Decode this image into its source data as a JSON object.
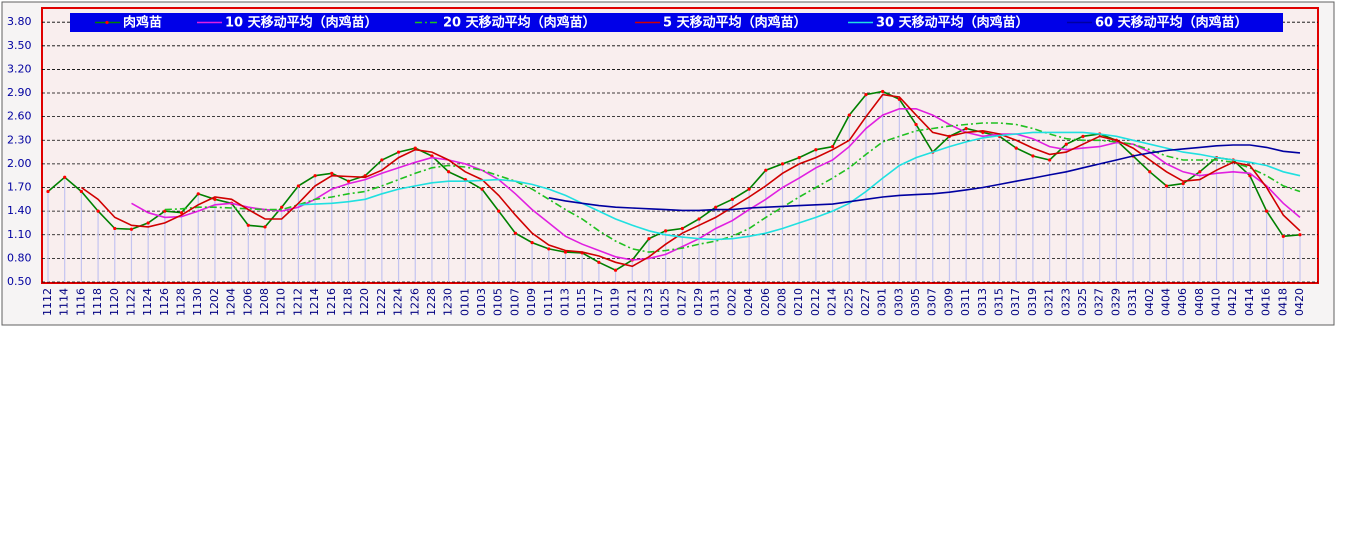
{
  "chart_data": {
    "type": "line",
    "categories": [
      "1112",
      "1114",
      "1116",
      "1118",
      "1120",
      "1122",
      "1124",
      "1126",
      "1128",
      "1130",
      "1202",
      "1204",
      "1206",
      "1208",
      "1210",
      "1212",
      "1214",
      "1216",
      "1218",
      "1220",
      "1222",
      "1224",
      "1226",
      "1228",
      "1230",
      "0101",
      "0103",
      "0105",
      "0107",
      "0109",
      "0111",
      "0113",
      "0115",
      "0117",
      "0119",
      "0121",
      "0123",
      "0125",
      "0127",
      "0129",
      "0131",
      "0202",
      "0204",
      "0206",
      "0208",
      "0210",
      "0212",
      "0214",
      "0225",
      "0227",
      "0301",
      "0303",
      "0305",
      "0307",
      "0309",
      "0311",
      "0313",
      "0315",
      "0317",
      "0319",
      "0321",
      "0323",
      "0325",
      "0327",
      "0329",
      "0331",
      "0402",
      "0404",
      "0406",
      "0408",
      "0410",
      "0412",
      "0414",
      "0416",
      "0418",
      "0420"
    ],
    "series": [
      {
        "name": "肉鸡苗",
        "color": "#008000",
        "marker_color": "#ff0000",
        "bar_color": "#c4c4f0",
        "values": [
          1.65,
          1.83,
          1.65,
          1.4,
          1.18,
          1.17,
          1.25,
          1.4,
          1.38,
          1.62,
          1.55,
          1.5,
          1.22,
          1.2,
          1.45,
          1.72,
          1.85,
          1.88,
          1.78,
          1.85,
          2.05,
          2.15,
          2.2,
          2.1,
          1.9,
          1.8,
          1.68,
          1.4,
          1.12,
          1.0,
          0.92,
          0.88,
          0.87,
          0.75,
          0.65,
          0.78,
          1.05,
          1.15,
          1.18,
          1.3,
          1.45,
          1.55,
          1.68,
          1.92,
          2.0,
          2.08,
          2.18,
          2.22,
          2.62,
          2.88,
          2.92,
          2.82,
          2.5,
          2.15,
          2.35,
          2.45,
          2.4,
          2.35,
          2.2,
          2.1,
          2.05,
          2.25,
          2.35,
          2.38,
          2.3,
          2.1,
          1.9,
          1.72,
          1.75,
          1.9,
          2.08,
          2.05,
          1.85,
          1.4,
          1.08,
          1.1
        ]
      },
      {
        "name": "10 天移动平均（肉鸡苗）",
        "color": "#e020e0",
        "values": [
          null,
          null,
          null,
          null,
          null,
          1.5,
          1.38,
          1.32,
          1.33,
          1.4,
          1.48,
          1.5,
          1.45,
          1.42,
          1.4,
          1.45,
          1.55,
          1.68,
          1.75,
          1.8,
          1.88,
          1.95,
          2.02,
          2.08,
          2.05,
          2.0,
          1.92,
          1.8,
          1.62,
          1.42,
          1.25,
          1.08,
          0.98,
          0.9,
          0.82,
          0.78,
          0.8,
          0.85,
          0.95,
          1.05,
          1.18,
          1.28,
          1.42,
          1.55,
          1.7,
          1.82,
          1.95,
          2.05,
          2.22,
          2.45,
          2.62,
          2.7,
          2.7,
          2.62,
          2.5,
          2.4,
          2.35,
          2.38,
          2.38,
          2.32,
          2.22,
          2.18,
          2.2,
          2.22,
          2.27,
          2.25,
          2.15,
          2.0,
          1.9,
          1.85,
          1.88,
          1.9,
          1.88,
          1.72,
          1.5,
          1.32
        ]
      },
      {
        "name": "20 天移动平均（肉鸡苗）",
        "color": "#20c020",
        "line_style": "dash-dot",
        "values": [
          null,
          null,
          null,
          null,
          null,
          null,
          null,
          1.42,
          1.43,
          1.45,
          1.45,
          1.44,
          1.43,
          1.42,
          1.42,
          1.48,
          1.55,
          1.58,
          1.62,
          1.65,
          1.72,
          1.8,
          1.88,
          1.95,
          1.98,
          1.96,
          1.92,
          1.85,
          1.78,
          1.68,
          1.55,
          1.42,
          1.3,
          1.15,
          1.02,
          0.92,
          0.88,
          0.9,
          0.93,
          0.98,
          1.02,
          1.08,
          1.18,
          1.32,
          1.45,
          1.58,
          1.7,
          1.82,
          1.95,
          2.12,
          2.28,
          2.35,
          2.42,
          2.45,
          2.48,
          2.5,
          2.52,
          2.52,
          2.5,
          2.45,
          2.38,
          2.32,
          2.3,
          2.3,
          2.28,
          2.25,
          2.18,
          2.1,
          2.05,
          2.05,
          2.05,
          2.02,
          1.95,
          1.85,
          1.72,
          1.65
        ]
      },
      {
        "name": "5 天移动平均（肉鸡苗）",
        "color": "#d00000",
        "values": [
          null,
          null,
          1.7,
          1.55,
          1.32,
          1.22,
          1.2,
          1.25,
          1.35,
          1.48,
          1.58,
          1.55,
          1.42,
          1.3,
          1.3,
          1.5,
          1.72,
          1.85,
          1.84,
          1.83,
          1.92,
          2.08,
          2.18,
          2.15,
          2.05,
          1.9,
          1.8,
          1.6,
          1.35,
          1.12,
          0.97,
          0.9,
          0.88,
          0.83,
          0.75,
          0.7,
          0.82,
          0.98,
          1.12,
          1.22,
          1.32,
          1.45,
          1.58,
          1.72,
          1.88,
          2.0,
          2.08,
          2.18,
          2.3,
          2.6,
          2.88,
          2.85,
          2.62,
          2.4,
          2.35,
          2.4,
          2.42,
          2.38,
          2.3,
          2.2,
          2.12,
          2.15,
          2.25,
          2.35,
          2.3,
          2.2,
          2.05,
          1.9,
          1.78,
          1.8,
          1.92,
          2.02,
          1.98,
          1.7,
          1.35,
          1.15
        ]
      },
      {
        "name": "30 天移动平均（肉鸡苗）",
        "color": "#20e0e0",
        "values": [
          null,
          null,
          null,
          null,
          null,
          null,
          null,
          null,
          null,
          null,
          null,
          null,
          null,
          null,
          null,
          1.48,
          1.49,
          1.5,
          1.52,
          1.55,
          1.62,
          1.68,
          1.72,
          1.76,
          1.78,
          1.78,
          1.79,
          1.8,
          1.78,
          1.74,
          1.68,
          1.6,
          1.5,
          1.4,
          1.3,
          1.22,
          1.15,
          1.1,
          1.07,
          1.05,
          1.04,
          1.05,
          1.08,
          1.12,
          1.18,
          1.25,
          1.32,
          1.4,
          1.5,
          1.65,
          1.82,
          1.98,
          2.08,
          2.15,
          2.22,
          2.28,
          2.33,
          2.36,
          2.38,
          2.4,
          2.4,
          2.4,
          2.4,
          2.38,
          2.35,
          2.3,
          2.25,
          2.2,
          2.15,
          2.12,
          2.08,
          2.05,
          2.02,
          1.98,
          1.9,
          1.85
        ]
      },
      {
        "name": "60 天移动平均（肉鸡苗）",
        "color": "#0000a0",
        "values": [
          null,
          null,
          null,
          null,
          null,
          null,
          null,
          null,
          null,
          null,
          null,
          null,
          null,
          null,
          null,
          null,
          null,
          null,
          null,
          null,
          null,
          null,
          null,
          null,
          null,
          null,
          null,
          null,
          null,
          null,
          1.57,
          1.53,
          1.5,
          1.47,
          1.45,
          1.44,
          1.43,
          1.42,
          1.41,
          1.41,
          1.42,
          1.42,
          1.44,
          1.45,
          1.46,
          1.47,
          1.48,
          1.49,
          1.52,
          1.55,
          1.58,
          1.6,
          1.61,
          1.62,
          1.64,
          1.67,
          1.7,
          1.74,
          1.78,
          1.82,
          1.86,
          1.9,
          1.95,
          2.0,
          2.05,
          2.1,
          2.14,
          2.17,
          2.19,
          2.21,
          2.23,
          2.24,
          2.24,
          2.21,
          2.16,
          2.14
        ]
      }
    ],
    "ylim": [
      0.5,
      3.98
    ],
    "yticks": [
      {
        "value": 0.5,
        "label": "0.50"
      },
      {
        "value": 0.8,
        "label": "0.80"
      },
      {
        "value": 1.1,
        "label": "1.10"
      },
      {
        "value": 1.4,
        "label": "1.40"
      },
      {
        "value": 1.7,
        "label": "1.70"
      },
      {
        "value": 2.0,
        "label": "2.00"
      },
      {
        "value": 2.3,
        "label": "2.30"
      },
      {
        "value": 2.6,
        "label": "2.60"
      },
      {
        "value": 2.9,
        "label": "2.90"
      },
      {
        "value": 3.2,
        "label": "3.20"
      },
      {
        "value": 3.5,
        "label": "3.50"
      },
      {
        "value": 3.8,
        "label": "3.80"
      }
    ],
    "grid": true,
    "legend_position": "top"
  }
}
